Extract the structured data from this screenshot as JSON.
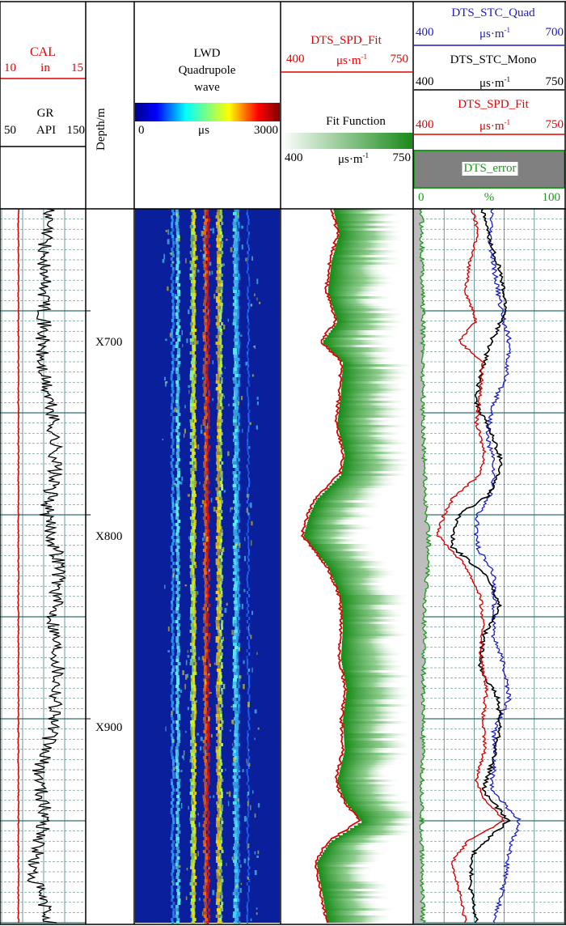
{
  "colors": {
    "red": "#e00000",
    "blue": "#1a1acc",
    "black": "#000000",
    "green": "#1a9a1a",
    "wave_bg": "#0a1f9c",
    "grid": "#2f6f6f",
    "error_fill": "#808080"
  },
  "depth_ticks": [
    "X700",
    "X800",
    "X900"
  ],
  "track1": {
    "cal": {
      "name": "CAL",
      "min": "10",
      "unit": "in",
      "max": "15"
    },
    "gr": {
      "name": "GR",
      "min": "50",
      "unit": "API",
      "max": "150"
    }
  },
  "track2": {
    "label": "Depth/m"
  },
  "track3": {
    "title_line1": "LWD",
    "title_line2": "Quadrupole",
    "title_line3": "wave",
    "min": "0",
    "unit": "μs",
    "max": "3000"
  },
  "track4": {
    "spd": {
      "name": "DTS_SPD_Fit",
      "min": "400",
      "unit": "μs·m",
      "unit_sup": "-1",
      "max": "750"
    },
    "fit": {
      "name": "Fit Function",
      "min": "400",
      "unit": "μs·m",
      "unit_sup": "-1",
      "max": "750"
    }
  },
  "track5": {
    "quad": {
      "name": "DTS_STC_Quad",
      "min": "400",
      "unit": "μs·m",
      "unit_sup": "-1",
      "max": "700"
    },
    "mono": {
      "name": "DTS_STC_Mono",
      "min": "400",
      "unit": "μs·m",
      "unit_sup": "-1",
      "max": "750"
    },
    "spd": {
      "name": "DTS_SPD_Fit",
      "min": "400",
      "unit": "μs·m",
      "unit_sup": "-1",
      "max": "750"
    },
    "error": {
      "name": "DTS_error",
      "min": "0",
      "unit": "%",
      "max": "100"
    }
  },
  "chart_data": {
    "type": "line",
    "depth_range": [
      650,
      1000
    ],
    "curves": [
      {
        "track": "CAL/GR",
        "name": "CAL",
        "unit": "in",
        "xlim": [
          10,
          15
        ],
        "depth": [
          650,
          1000
        ],
        "values": [
          11.0,
          11.0
        ]
      },
      {
        "track": "CAL/GR",
        "name": "GR",
        "unit": "API",
        "xlim": [
          50,
          150
        ],
        "depth": [
          650,
          675,
          700,
          725,
          750,
          775,
          800,
          825,
          850,
          875,
          900,
          925,
          950,
          975,
          1000
        ],
        "values": [
          105,
          100,
          102,
          96,
          110,
          115,
          103,
          120,
          112,
          118,
          114,
          95,
          102,
          85,
          108
        ]
      },
      {
        "track": "Fit",
        "name": "DTS_SPD_Fit",
        "unit": "μs·m-1",
        "xlim": [
          400,
          750
        ],
        "depth": [
          650,
          662,
          675,
          690,
          705,
          715,
          725,
          740,
          755,
          770,
          780,
          792,
          800,
          810,
          825,
          840,
          855,
          870,
          885,
          900,
          915,
          930,
          940,
          950,
          960,
          970,
          980,
          990,
          1000
        ],
        "values": [
          535,
          550,
          530,
          520,
          545,
          505,
          560,
          555,
          545,
          565,
          555,
          490,
          470,
          455,
          520,
          555,
          560,
          555,
          570,
          560,
          565,
          545,
          565,
          610,
          525,
          490,
          500,
          510,
          520
        ]
      },
      {
        "track": "DTS",
        "name": "DTS_STC_Quad",
        "unit": "μs·m-1",
        "xlim": [
          400,
          700
        ],
        "depth": [
          650,
          665,
          680,
          700,
          715,
          730,
          745,
          760,
          775,
          790,
          800,
          815,
          830,
          845,
          860,
          875,
          890,
          905,
          920,
          935,
          950,
          965,
          980,
          1000
        ],
        "values": [
          555,
          550,
          560,
          575,
          590,
          585,
          560,
          545,
          560,
          555,
          525,
          525,
          560,
          560,
          560,
          580,
          590,
          560,
          560,
          555,
          610,
          590,
          580,
          560
        ]
      },
      {
        "track": "DTS",
        "name": "DTS_STC_Mono",
        "unit": "μs·m-1",
        "xlim": [
          400,
          750
        ],
        "depth": [
          650,
          665,
          680,
          700,
          715,
          730,
          745,
          760,
          775,
          790,
          800,
          815,
          830,
          845,
          860,
          875,
          890,
          905,
          920,
          935,
          950,
          965,
          980,
          1000
        ],
        "values": [
          560,
          575,
          600,
          615,
          580,
          555,
          545,
          580,
          605,
          575,
          505,
          485,
          570,
          600,
          560,
          555,
          595,
          600,
          585,
          560,
          620,
          540,
          530,
          545
        ]
      },
      {
        "track": "DTS",
        "name": "DTS_SPD_Fit",
        "unit": "μs·m-1",
        "xlim": [
          400,
          750
        ],
        "depth": [
          650,
          662,
          675,
          690,
          705,
          715,
          725,
          740,
          755,
          770,
          780,
          792,
          800,
          810,
          825,
          840,
          855,
          870,
          885,
          900,
          915,
          930,
          940,
          950,
          960,
          970,
          980,
          990,
          1000
        ],
        "values": [
          535,
          550,
          530,
          520,
          545,
          505,
          560,
          555,
          545,
          565,
          555,
          490,
          470,
          455,
          520,
          555,
          560,
          555,
          570,
          560,
          565,
          545,
          565,
          610,
          525,
          490,
          500,
          510,
          520
        ]
      },
      {
        "track": "DTS",
        "name": "DTS_error",
        "unit": "%",
        "xlim": [
          0,
          100
        ],
        "depth": [
          650,
          700,
          750,
          800,
          810,
          850,
          900,
          950,
          1000
        ],
        "values": [
          5,
          6,
          6,
          8,
          10,
          7,
          6,
          5,
          6
        ]
      }
    ],
    "images": [
      {
        "track": "LWD Quadrupole wave",
        "type": "heatmap",
        "colormap": "jet",
        "range": [
          0,
          3000
        ]
      },
      {
        "track": "Fit Function",
        "type": "heatmap",
        "colormap": "white-green",
        "range": [
          400,
          750
        ]
      }
    ]
  }
}
